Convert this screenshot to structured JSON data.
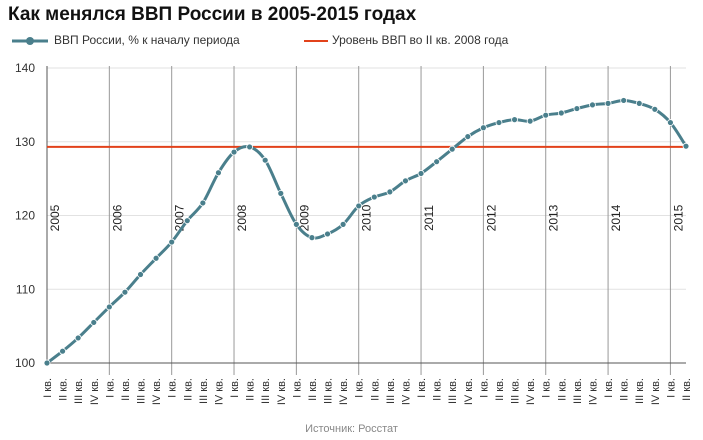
{
  "title": "Как менялся ВВП России в 2005-2015 годах",
  "source": "Источник: Росстат",
  "colors": {
    "series": "#4a7f8c",
    "reference": "#e2421b",
    "grid": "#e2e2e2",
    "yearline": "#999999"
  },
  "chart_data": {
    "type": "line",
    "title": "Как менялся ВВП России в 2005-2015 годах",
    "ylim": [
      100,
      140
    ],
    "yticks": [
      100,
      110,
      120,
      130,
      140
    ],
    "grid": true,
    "legend_position": "top-left",
    "x": [
      "I кв.",
      "II кв.",
      "III кв.",
      "IV кв.",
      "I кв.",
      "II кв.",
      "III кв.",
      "IV кв.",
      "I кв.",
      "II кв.",
      "III кв.",
      "IV кв.",
      "I кв.",
      "II кв.",
      "III кв.",
      "IV кв.",
      "I кв.",
      "II кв.",
      "III кв.",
      "IV кв.",
      "I кв.",
      "II кв.",
      "III кв.",
      "IV кв.",
      "I кв.",
      "II кв.",
      "III кв.",
      "IV кв.",
      "I кв.",
      "II кв.",
      "III кв.",
      "IV кв.",
      "I кв.",
      "II кв.",
      "III кв.",
      "IV кв.",
      "I кв.",
      "II кв.",
      "III кв.",
      "IV кв.",
      "I кв.",
      "II кв."
    ],
    "year_labels": [
      {
        "index": 0,
        "label": "2005"
      },
      {
        "index": 4,
        "label": "2006"
      },
      {
        "index": 8,
        "label": "2007"
      },
      {
        "index": 12,
        "label": "2008"
      },
      {
        "index": 16,
        "label": "2009"
      },
      {
        "index": 20,
        "label": "2010"
      },
      {
        "index": 24,
        "label": "2011"
      },
      {
        "index": 28,
        "label": "2012"
      },
      {
        "index": 32,
        "label": "2013"
      },
      {
        "index": 36,
        "label": "2014"
      },
      {
        "index": 40,
        "label": "2015"
      }
    ],
    "series": [
      {
        "name": "ВВП России, % к началу периода",
        "values": [
          100.0,
          101.6,
          103.4,
          105.5,
          107.6,
          109.6,
          112.0,
          114.2,
          116.4,
          119.3,
          121.7,
          125.8,
          128.6,
          129.3,
          127.5,
          123.0,
          118.8,
          117.0,
          117.5,
          118.8,
          121.3,
          122.5,
          123.2,
          124.7,
          125.7,
          127.3,
          129.0,
          130.7,
          131.9,
          132.6,
          133.0,
          132.8,
          133.6,
          133.9,
          134.5,
          135.0,
          135.2,
          135.6,
          135.2,
          134.4,
          132.6,
          129.4
        ]
      },
      {
        "name": "Уровень ВВП во II кв. 2008 года",
        "value": 129.3
      }
    ]
  }
}
